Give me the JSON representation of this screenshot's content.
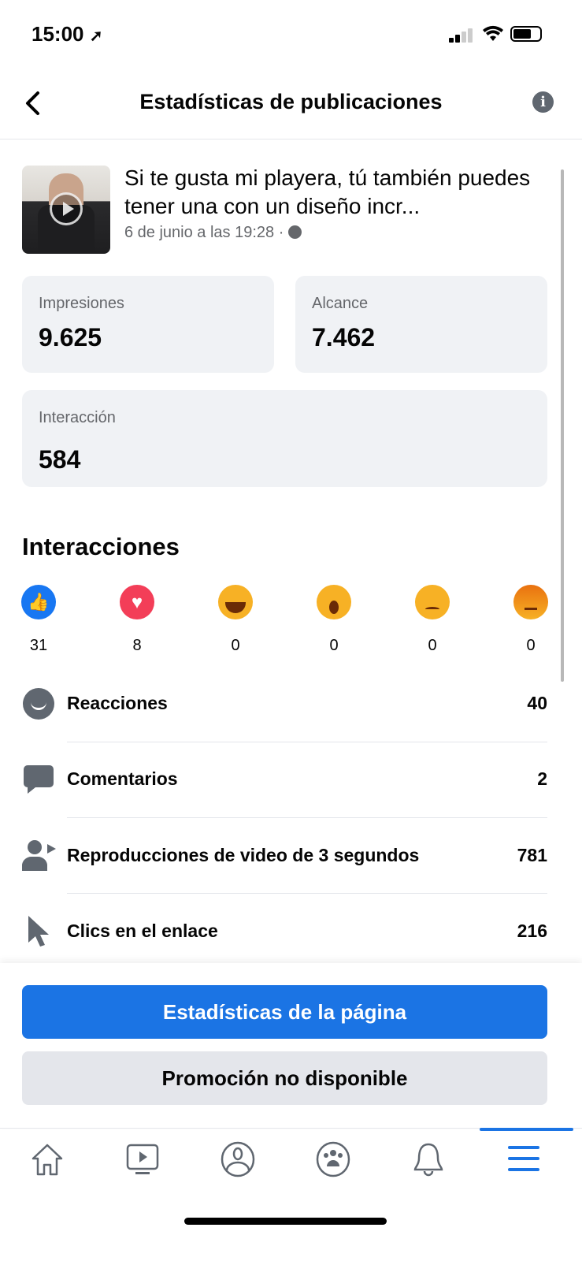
{
  "status_bar": {
    "time": "15:00"
  },
  "header": {
    "title": "Estadísticas de publicaciones"
  },
  "post": {
    "title": "Si te gusta mi playera, tú también puedes tener una con un diseño incr...",
    "date": "6 de junio a las 19:28 ·"
  },
  "metrics": [
    {
      "label": "Impresiones",
      "value": "9.625"
    },
    {
      "label": "Alcance",
      "value": "7.462"
    },
    {
      "label": "Interacción",
      "value": "584"
    }
  ],
  "interactions": {
    "title": "Interacciones",
    "reactions": [
      {
        "icon": "like-icon",
        "count": "31"
      },
      {
        "icon": "love-icon",
        "count": "8"
      },
      {
        "icon": "haha-icon",
        "count": "0"
      },
      {
        "icon": "wow-icon",
        "count": "0"
      },
      {
        "icon": "sad-icon",
        "count": "0"
      },
      {
        "icon": "angry-icon",
        "count": "0"
      }
    ],
    "rows": [
      {
        "icon": "smiley-icon",
        "label": "Reacciones",
        "value": "40"
      },
      {
        "icon": "comment-icon",
        "label": "Comentarios",
        "value": "2"
      },
      {
        "icon": "person-video-icon",
        "label": "Reproducciones de video de 3 segundos",
        "value": "781"
      },
      {
        "icon": "cursor-icon",
        "label": "Clics en el enlace",
        "value": "216"
      }
    ]
  },
  "buttons": {
    "page_stats": "Estadísticas de la página",
    "promotion": "Promoción no disponible"
  },
  "tabs": [
    "home-icon",
    "watch-icon",
    "profile-icon",
    "groups-icon",
    "notifications-icon",
    "menu-icon"
  ],
  "colors": {
    "accent": "#1b74e4",
    "card": "#f0f2f5",
    "secondary": "#65676b"
  }
}
